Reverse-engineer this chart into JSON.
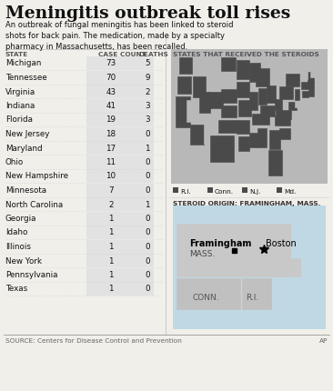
{
  "title": "Meningitis outbreak toll rises",
  "subtitle": "An outbreak of fungal meningitis has been linked to steroid\nshots for back pain. The medication, made by a specialty\npharmacy in Massachusetts, has been recalled.",
  "col_headers": [
    "STATE",
    "CASE COUNT",
    "DEATHS"
  ],
  "map_header": "STATES THAT RECEIVED THE STEROIDS",
  "table_data": [
    [
      "Michigan",
      73,
      5
    ],
    [
      "Tennessee",
      70,
      9
    ],
    [
      "Virginia",
      43,
      2
    ],
    [
      "Indiana",
      41,
      3
    ],
    [
      "Florida",
      19,
      3
    ],
    [
      "New Jersey",
      18,
      0
    ],
    [
      "Maryland",
      17,
      1
    ],
    [
      "Ohio",
      11,
      0
    ],
    [
      "New Hampshire",
      10,
      0
    ],
    [
      "Minnesota",
      7,
      0
    ],
    [
      "North Carolina",
      2,
      1
    ],
    [
      "Georgia",
      1,
      0
    ],
    [
      "Idaho",
      1,
      0
    ],
    [
      "Illinois",
      1,
      0
    ],
    [
      "New York",
      1,
      0
    ],
    [
      "Pennsylvania",
      1,
      0
    ],
    [
      "Texas",
      1,
      0
    ]
  ],
  "legend_items": [
    "R.I.",
    "Conn.",
    "N.J.",
    "Md."
  ],
  "steroid_origin_label": "STEROID ORIGIN: FRAMINGHAM, MASS.",
  "source_text": "SOURCE: Centers for Disease Control and Prevention",
  "ap_text": "AP",
  "bg_color": "#f0efea",
  "map_us_bg": "#d8d8d8",
  "map_water": "#c8dce6",
  "map_dark": "#4a4a4a",
  "map_light": "#b8b8b8",
  "title_color": "#111111",
  "text_color": "#111111",
  "header_color": "#555555",
  "divider_color": "#bbbbbb",
  "case_col_bg": "#e2e2e2"
}
